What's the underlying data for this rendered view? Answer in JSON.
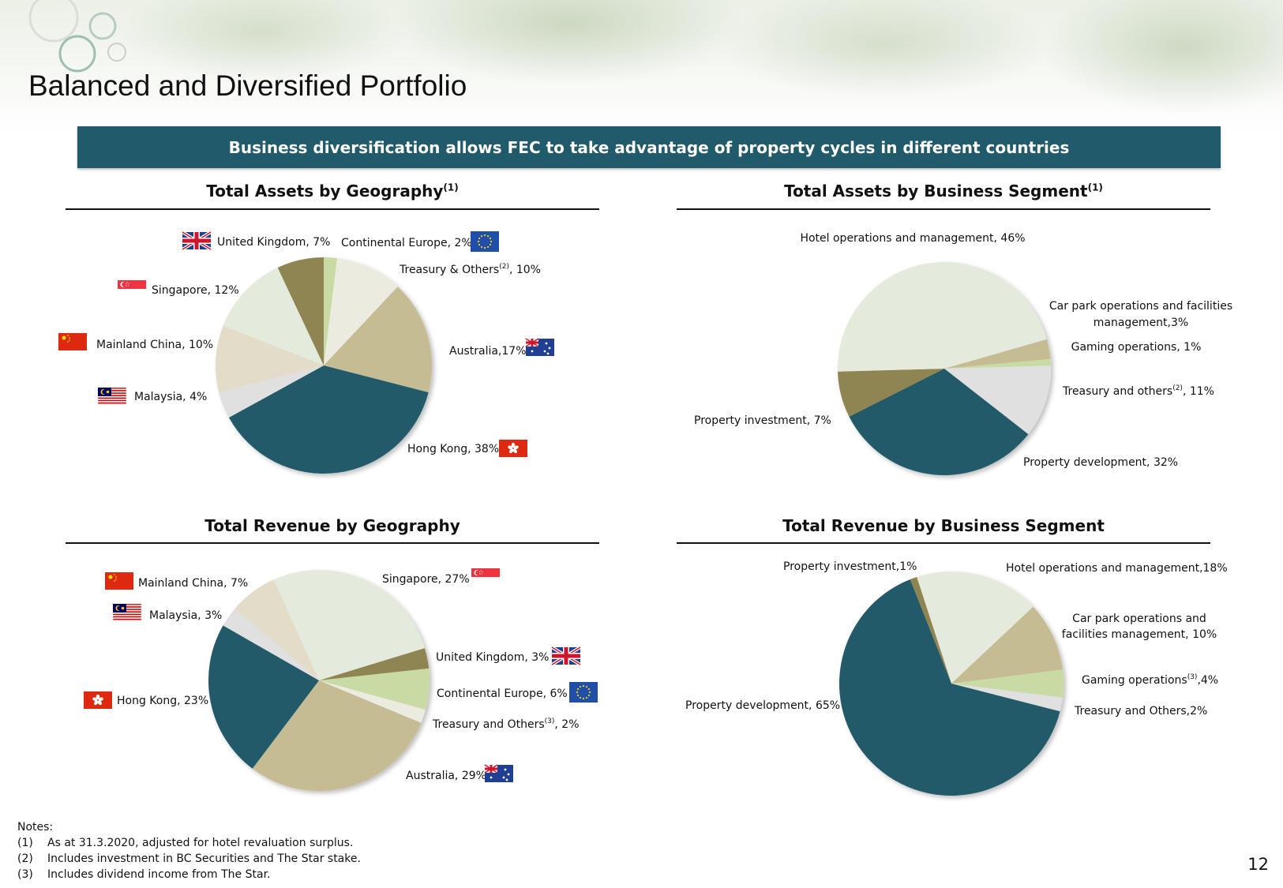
{
  "slide": {
    "title": "Balanced and Diversified Portfolio",
    "banner": "Business diversification allows FEC to take advantage of property cycles in different countries",
    "page_number": "12"
  },
  "sections": {
    "assets_geo": {
      "title": "Total Assets by Geography",
      "sup": "(1)"
    },
    "assets_seg": {
      "title": "Total Assets by Business Segment",
      "sup": "(1)"
    },
    "revenue_geo": {
      "title": "Total Revenue by Geography",
      "sup": ""
    },
    "revenue_seg": {
      "title": "Total Revenue by Business Segment",
      "sup": ""
    }
  },
  "notes": {
    "heading": "Notes:",
    "items": [
      {
        "num": "(1)",
        "text": "As at 31.3.2020, adjusted for hotel revaluation surplus."
      },
      {
        "num": "(2)",
        "text": "Includes investment in BC Securities and The Star stake."
      },
      {
        "num": "(3)",
        "text": "Includes dividend income from The Star."
      }
    ]
  },
  "colors": {
    "teal": "#205a6b",
    "tan": "#c6bc94",
    "pale_green": "#e4eadc",
    "olive": "#8f8552",
    "light_green": "#c9dba4",
    "light_grey": "#e0e0e0",
    "beige": "#e2dcc9",
    "cream": "#ecebe0"
  },
  "chart_data": [
    {
      "id": "assets_geo",
      "type": "pie",
      "title": "Total Assets by Geography",
      "slices": [
        {
          "label": "Continental Europe",
          "value": 2,
          "text": "Continental Europe, 2%",
          "color": "#c9dba4",
          "flag": "eu"
        },
        {
          "label": "Treasury & Others",
          "value": 10,
          "text": "Treasury & Others",
          "text_sup": "(2)",
          "text_after": ", 10%",
          "color": "#ecebe0"
        },
        {
          "label": "Australia",
          "value": 17,
          "text": "Australia,17%",
          "color": "#c6bc94",
          "flag": "au"
        },
        {
          "label": "Hong Kong",
          "value": 38,
          "text": "Hong Kong, 38%",
          "color": "#205a6b",
          "flag": "hk"
        },
        {
          "label": "Malaysia",
          "value": 4,
          "text": "Malaysia, 4%",
          "color": "#e0e0e0",
          "flag": "my"
        },
        {
          "label": "Mainland China",
          "value": 10,
          "text": "Mainland China, 10%",
          "color": "#e2dcc9",
          "flag": "cn"
        },
        {
          "label": "Singapore",
          "value": 12,
          "text": "Singapore, 12%",
          "color": "#e4eadc",
          "flag": "sg"
        },
        {
          "label": "United Kingdom",
          "value": 7,
          "text": "United Kingdom, 7%",
          "color": "#8f8552",
          "flag": "uk"
        }
      ]
    },
    {
      "id": "assets_seg",
      "type": "pie",
      "title": "Total Assets by Business Segment",
      "slices": [
        {
          "label": "Car park operations and facilities management",
          "value": 3,
          "text": "Car park operations and facilities",
          "text2": "management,3%",
          "color": "#c6bc94"
        },
        {
          "label": "Gaming operations",
          "value": 1,
          "text": "Gaming operations,  1%",
          "color": "#c9dba4"
        },
        {
          "label": "Treasury and others",
          "value": 11,
          "text": "Treasury and others",
          "text_sup": "(2)",
          "text_after": ", 11%",
          "color": "#e0e0e0"
        },
        {
          "label": "Property development",
          "value": 32,
          "text": "Property development, 32%",
          "color": "#205a6b"
        },
        {
          "label": "Property investment",
          "value": 7,
          "text": "Property investment, 7%",
          "color": "#8f8552"
        },
        {
          "label": "Hotel operations and management",
          "value": 46,
          "text": "Hotel operations and management, 46%",
          "color": "#e4eadc"
        }
      ]
    },
    {
      "id": "revenue_geo",
      "type": "pie",
      "title": "Total Revenue by Geography",
      "slices": [
        {
          "label": "United Kingdom",
          "value": 3,
          "text": "United Kingdom, 3%",
          "color": "#8f8552",
          "flag": "uk"
        },
        {
          "label": "Continental Europe",
          "value": 6,
          "text": "Continental Europe, 6%",
          "color": "#c9dba4",
          "flag": "eu"
        },
        {
          "label": "Treasury and Others",
          "value": 2,
          "text": "Treasury and Others",
          "text_sup": "(3)",
          "text_after": ", 2%",
          "color": "#ecebe0"
        },
        {
          "label": "Australia",
          "value": 29,
          "text": "Australia, 29%",
          "color": "#c6bc94",
          "flag": "au"
        },
        {
          "label": "Hong Kong",
          "value": 23,
          "text": "Hong Kong, 23%",
          "color": "#205a6b",
          "flag": "hk"
        },
        {
          "label": "Malaysia",
          "value": 3,
          "text": "Malaysia, 3%",
          "color": "#e0e0e0",
          "flag": "my"
        },
        {
          "label": "Mainland China",
          "value": 7,
          "text": "Mainland China, 7%",
          "color": "#e2dcc9",
          "flag": "cn"
        },
        {
          "label": "Singapore",
          "value": 27,
          "text": "Singapore, 27%",
          "color": "#e4eadc",
          "flag": "sg"
        }
      ]
    },
    {
      "id": "revenue_seg",
      "type": "pie",
      "title": "Total Revenue by Business Segment",
      "slices": [
        {
          "label": "Hotel operations and management",
          "value": 18,
          "text": "Hotel operations and management,18%",
          "color": "#e4eadc"
        },
        {
          "label": "Car park operations and facilities management",
          "value": 10,
          "text": "Car park operations and",
          "text2": "facilities management, 10%",
          "color": "#c6bc94"
        },
        {
          "label": "Gaming operations",
          "value": 4,
          "text": "Gaming operations",
          "text_sup": "(3)",
          "text_after": ",4%",
          "color": "#c9dba4"
        },
        {
          "label": "Treasury and Others",
          "value": 2,
          "text": "Treasury and Others,2%",
          "color": "#e0e0e0"
        },
        {
          "label": "Property development",
          "value": 65,
          "text": "Property development, 65%",
          "color": "#205a6b"
        },
        {
          "label": "Property investment",
          "value": 1,
          "text": "Property investment,1%",
          "color": "#8f8552"
        }
      ]
    }
  ]
}
